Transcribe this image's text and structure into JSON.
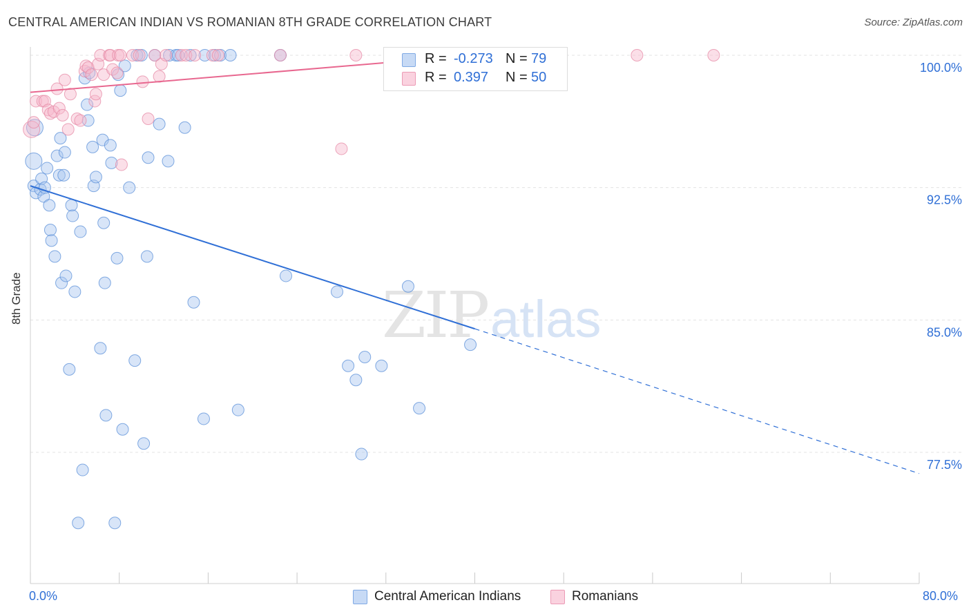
{
  "header": {
    "title": "CENTRAL AMERICAN INDIAN VS ROMANIAN 8TH GRADE CORRELATION CHART",
    "source": "Source: ZipAtlas.com"
  },
  "watermark": {
    "zip": "ZIP",
    "atlas": "atlas"
  },
  "legend": {
    "r_label": "R =",
    "n_label": "N =",
    "rows": [
      {
        "r": "-0.273",
        "n": "79",
        "color": "#a8c6f0"
      },
      {
        "r": "0.397",
        "n": "50",
        "color": "#f6b8cb"
      }
    ]
  },
  "bottom_legend": [
    {
      "label": "Central American Indians",
      "color": "#a8c6f0"
    },
    {
      "label": "Romanians",
      "color": "#f6b8cb"
    }
  ],
  "chart_data": {
    "type": "scatter",
    "title": "CENTRAL AMERICAN INDIAN VS ROMANIAN 8TH GRADE CORRELATION CHART",
    "ylabel": "8th Grade",
    "xlim": [
      0,
      80
    ],
    "ylim": [
      71.0,
      100.7
    ],
    "x_tick_labels": [
      {
        "value": 0,
        "label": "0.0%"
      },
      {
        "value": 80,
        "label": "80.0%"
      }
    ],
    "y_tick_labels": [
      {
        "value": 100.0,
        "label": "100.0%"
      },
      {
        "value": 92.5,
        "label": "92.5%"
      },
      {
        "value": 85.0,
        "label": "85.0%"
      },
      {
        "value": 77.5,
        "label": "77.5%"
      }
    ],
    "grid": "horizontal dashed",
    "legend_position": "top-center",
    "series": [
      {
        "name": "Central American Indians",
        "color": "#a8c6f0",
        "edge_color": "#5a8fd8",
        "trend": {
          "x0": 0,
          "y0": 92.6,
          "x1": 40,
          "y1": 84.5,
          "dash_to_x": 80,
          "dash_to_y": 76.3,
          "color": "#2f6fd6"
        },
        "points": [
          [
            0.3,
            94.0
          ],
          [
            0.3,
            92.6
          ],
          [
            0.4,
            95.9
          ],
          [
            0.5,
            92.2
          ],
          [
            0.9,
            92.4
          ],
          [
            1.0,
            93.0
          ],
          [
            1.2,
            92.0
          ],
          [
            1.3,
            92.5
          ],
          [
            1.5,
            93.6
          ],
          [
            1.7,
            91.5
          ],
          [
            1.8,
            90.1
          ],
          [
            1.9,
            89.5
          ],
          [
            2.2,
            88.6
          ],
          [
            2.4,
            94.3
          ],
          [
            2.6,
            93.2
          ],
          [
            2.7,
            95.3
          ],
          [
            2.8,
            87.1
          ],
          [
            3.0,
            93.2
          ],
          [
            3.1,
            94.5
          ],
          [
            3.2,
            87.5
          ],
          [
            3.5,
            82.2
          ],
          [
            3.7,
            91.5
          ],
          [
            3.8,
            90.9
          ],
          [
            4.0,
            86.6
          ],
          [
            4.3,
            73.5
          ],
          [
            4.5,
            90.0
          ],
          [
            4.7,
            76.5
          ],
          [
            4.9,
            98.7
          ],
          [
            5.1,
            97.2
          ],
          [
            5.2,
            96.3
          ],
          [
            5.3,
            99.0
          ],
          [
            5.6,
            94.8
          ],
          [
            5.7,
            92.6
          ],
          [
            5.9,
            93.1
          ],
          [
            6.3,
            83.4
          ],
          [
            6.5,
            95.2
          ],
          [
            6.6,
            90.5
          ],
          [
            6.7,
            87.1
          ],
          [
            6.8,
            79.6
          ],
          [
            7.2,
            94.9
          ],
          [
            7.3,
            93.9
          ],
          [
            7.6,
            73.5
          ],
          [
            7.8,
            88.5
          ],
          [
            7.9,
            98.9
          ],
          [
            8.1,
            98.0
          ],
          [
            8.3,
            78.8
          ],
          [
            8.5,
            99.4
          ],
          [
            8.9,
            92.5
          ],
          [
            9.4,
            82.7
          ],
          [
            9.6,
            100.0
          ],
          [
            10.0,
            100.0
          ],
          [
            10.2,
            78.0
          ],
          [
            10.5,
            88.6
          ],
          [
            10.6,
            94.2
          ],
          [
            11.2,
            100.0
          ],
          [
            11.6,
            96.1
          ],
          [
            12.4,
            94.0
          ],
          [
            12.5,
            100.0
          ],
          [
            13.1,
            100.0
          ],
          [
            13.3,
            100.0
          ],
          [
            13.9,
            95.9
          ],
          [
            14.4,
            100.0
          ],
          [
            14.7,
            86.0
          ],
          [
            15.6,
            79.4
          ],
          [
            15.7,
            100.0
          ],
          [
            16.6,
            100.0
          ],
          [
            17.1,
            100.0
          ],
          [
            18.0,
            100.0
          ],
          [
            18.7,
            79.9
          ],
          [
            22.5,
            100.0
          ],
          [
            23.0,
            87.5
          ],
          [
            27.6,
            86.6
          ],
          [
            28.6,
            82.4
          ],
          [
            29.3,
            81.6
          ],
          [
            29.8,
            77.4
          ],
          [
            30.1,
            82.9
          ],
          [
            31.6,
            82.4
          ],
          [
            34.0,
            86.9
          ],
          [
            35.0,
            80.0
          ],
          [
            39.6,
            83.6
          ]
        ]
      },
      {
        "name": "Romanians",
        "color": "#f6b8cb",
        "edge_color": "#e58aa6",
        "trend": {
          "x0": 0,
          "y0": 97.9,
          "x1": 40,
          "y1": 100.0,
          "color": "#e8678f"
        },
        "points": [
          [
            0.1,
            95.8
          ],
          [
            0.3,
            96.2
          ],
          [
            0.5,
            97.4
          ],
          [
            1.1,
            97.4
          ],
          [
            1.3,
            97.4
          ],
          [
            1.6,
            96.9
          ],
          [
            1.8,
            96.7
          ],
          [
            2.1,
            96.8
          ],
          [
            2.4,
            98.1
          ],
          [
            2.6,
            97.0
          ],
          [
            2.9,
            96.6
          ],
          [
            3.1,
            98.6
          ],
          [
            3.4,
            95.8
          ],
          [
            3.6,
            97.8
          ],
          [
            4.2,
            96.4
          ],
          [
            4.5,
            96.3
          ],
          [
            4.9,
            99.1
          ],
          [
            5.0,
            99.4
          ],
          [
            5.2,
            99.3
          ],
          [
            5.5,
            98.9
          ],
          [
            5.8,
            97.4
          ],
          [
            5.9,
            97.8
          ],
          [
            6.1,
            99.5
          ],
          [
            6.3,
            100.0
          ],
          [
            6.6,
            98.9
          ],
          [
            7.1,
            100.0
          ],
          [
            7.2,
            100.0
          ],
          [
            7.4,
            99.2
          ],
          [
            7.8,
            99.0
          ],
          [
            7.9,
            100.0
          ],
          [
            8.1,
            100.0
          ],
          [
            8.2,
            93.8
          ],
          [
            9.2,
            100.0
          ],
          [
            9.8,
            100.0
          ],
          [
            10.1,
            98.5
          ],
          [
            10.6,
            96.4
          ],
          [
            11.2,
            100.0
          ],
          [
            11.6,
            98.8
          ],
          [
            11.8,
            99.5
          ],
          [
            12.2,
            100.0
          ],
          [
            13.6,
            100.0
          ],
          [
            14.0,
            100.0
          ],
          [
            14.8,
            100.0
          ],
          [
            16.4,
            100.0
          ],
          [
            16.9,
            100.0
          ],
          [
            22.5,
            100.0
          ],
          [
            28.0,
            94.7
          ],
          [
            29.3,
            100.0
          ],
          [
            54.6,
            100.0
          ],
          [
            61.5,
            100.0
          ]
        ]
      }
    ]
  }
}
